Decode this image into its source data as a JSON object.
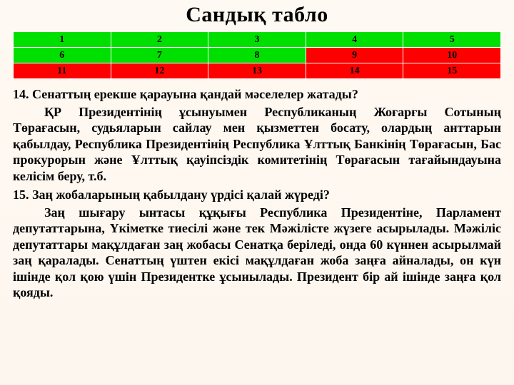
{
  "title": "Сандық табло",
  "table": {
    "colors": {
      "green_bg": "#00e000",
      "red_bg": "#ff0000",
      "green_text": "#000000",
      "red_text": "#000000",
      "border": "#ffffff"
    },
    "cell_fontsize": 14,
    "rows": [
      {
        "cells": [
          "1",
          "2",
          "3",
          "4",
          "5"
        ],
        "row_bg": "#00e000",
        "overrides": {}
      },
      {
        "cells": [
          "6",
          "7",
          "8",
          "9",
          "10"
        ],
        "row_bg": "#00e000",
        "overrides": {
          "3": "#ff0000",
          "4": "#ff0000"
        }
      },
      {
        "cells": [
          "11",
          "12",
          "13",
          "14",
          "15"
        ],
        "row_bg": "#ff0000",
        "overrides": {}
      }
    ]
  },
  "q14": {
    "question": "14. Сенаттың ерекше қарауына қандай мәселелер жатады?",
    "answer": "ҚР Президентінің ұсынуымен Республиканың Жоғарғы Сотының Төрағасын, судьяларын сайлау мен қызметтен босату, олардың анттарын қабылдау, Республика Президентінің Республика Ұлттық Банкінің Төрағасын, Бас прокурорын және Ұлттық қауіпсіздік комитетінің Төрағасын тағайындауына келісім беру, т.б."
  },
  "q15": {
    "question": "15. Заң жобаларының қабылдану үрдісі қалай жүреді?",
    "answer": "Заң шығару ынтасы құқығы Республика Президентіне, Парламент депутаттарына, Үкіметке тиесілі және тек Мәжілісте жүзеге асырылады. Мәжіліс депутаттары мақұлдаған заң жобасы Сенатқа беріледі, онда 60 күннен асырылмай заң қаралады. Сенаттың үштен екісі мақұлдаған жоба заңға айналады, он күн ішінде қол қою үшін Президентке ұсынылады. Президент бір ай ішінде заңға қол қояды."
  },
  "typography": {
    "title_fontsize": 30,
    "body_fontsize": 18,
    "font_family": "Times New Roman",
    "text_color": "#000000",
    "background_color": "#fef9f2"
  }
}
